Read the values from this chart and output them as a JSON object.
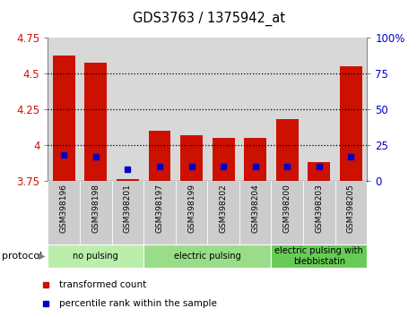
{
  "title": "GDS3763 / 1375942_at",
  "samples": [
    "GSM398196",
    "GSM398198",
    "GSM398201",
    "GSM398197",
    "GSM398199",
    "GSM398202",
    "GSM398204",
    "GSM398200",
    "GSM398203",
    "GSM398205"
  ],
  "transformed_counts": [
    4.63,
    4.58,
    3.76,
    4.1,
    4.07,
    4.05,
    4.05,
    4.18,
    3.88,
    4.55
  ],
  "percentile_ranks": [
    18,
    17,
    8,
    10,
    10,
    10,
    10,
    10,
    10,
    17
  ],
  "bar_bottom": 3.75,
  "ylim_left": [
    3.75,
    4.75
  ],
  "ylim_right": [
    0,
    100
  ],
  "yticks_left": [
    3.75,
    4.0,
    4.25,
    4.5,
    4.75
  ],
  "yticks_right": [
    0,
    25,
    50,
    75,
    100
  ],
  "ytick_labels_left": [
    "3.75",
    "4",
    "4.25",
    "4.5",
    "4.75"
  ],
  "ytick_labels_right": [
    "0",
    "25",
    "50",
    "75",
    "100%"
  ],
  "bar_color": "#cc1100",
  "percentile_color": "#0000cc",
  "col_bg_color": "#d8d8d8",
  "groups": [
    {
      "label": "no pulsing",
      "start": 0,
      "end": 3,
      "color": "#bbeeaa"
    },
    {
      "label": "electric pulsing",
      "start": 3,
      "end": 7,
      "color": "#99dd88"
    },
    {
      "label": "electric pulsing with\nblebbistatin",
      "start": 7,
      "end": 10,
      "color": "#66cc55"
    }
  ],
  "legend_items": [
    {
      "label": "transformed count",
      "color": "#cc1100"
    },
    {
      "label": "percentile rank within the sample",
      "color": "#0000cc"
    }
  ]
}
